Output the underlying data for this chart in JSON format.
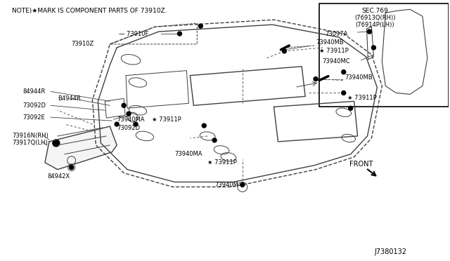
{
  "bg_color": "#ffffff",
  "line_color": "#404040",
  "title_note": "NOTE>★MARK IS COMPONENT PARTS OF 73910Z.",
  "diagram_id": "J7380132",
  "inset_sec": "SEC.769\n(76913Q(RH))\n(76914P(LH))",
  "front_text": "FRONT"
}
